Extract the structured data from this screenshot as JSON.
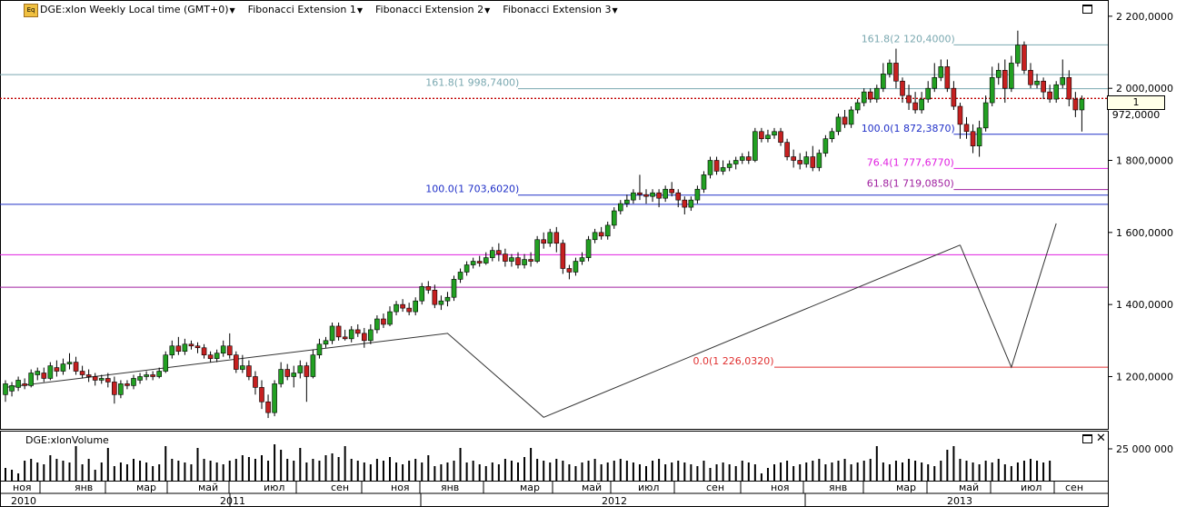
{
  "toolbar": {
    "icon_label": "Eq",
    "symbol": "DGE:xlon Weekly Local time (GMT+0)",
    "indicators": [
      "Fibonacci Extension 1",
      "Fibonacci Extension 2",
      "Fibonacci Extension 3"
    ]
  },
  "volume_panel": {
    "title": "DGE:xlonVolume",
    "axis_label": "25 000 000"
  },
  "last_price_label": "1 972,0000",
  "colors": {
    "bull": "#22a022",
    "bear": "#c62020",
    "fib1": "#7aa8b0",
    "fib2": "#2030c8",
    "fib3": "#e020e0",
    "fib618": "#a020a0",
    "fib0": "#e03030",
    "lastprice": "#c00000"
  },
  "chart_data": {
    "type": "candlestick",
    "y_axis": {
      "min": 1060,
      "max": 2240,
      "ticks": [
        "1 200,0000",
        "1 400,0000",
        "1 600,0000",
        "1 800,0000",
        "2 000,0000",
        "2 200,0000"
      ],
      "tick_values": [
        1200,
        1400,
        1600,
        1800,
        2000,
        2200
      ]
    },
    "x_axis": {
      "month_labels": [
        "ноя",
        "янв",
        "мар",
        "май",
        "июл",
        "сен",
        "ноя",
        "янв",
        "мар",
        "май",
        "июл",
        "сен",
        "ноя",
        "янв",
        "мар",
        "май",
        "июл",
        "сен"
      ],
      "year_labels": [
        "2010",
        "2011",
        "2012",
        "2013"
      ]
    },
    "last_price": 1972,
    "fib_levels": [
      {
        "label": "161.8(2 120,4000)",
        "value": 2120.4,
        "group": "fib1",
        "x_start_week": 148
      },
      {
        "label": "161.8(1 998,7400)",
        "value": 1998.74,
        "group": "fib1",
        "x_start_week": 80
      },
      {
        "label": "100.0(1 872,3870)",
        "value": 1872.387,
        "group": "fib2",
        "x_start_week": 148
      },
      {
        "label": "76.4(1 777,6770)",
        "value": 1777.677,
        "group": "fib3",
        "x_start_week": 148
      },
      {
        "label": "61.8(1 719,0850)",
        "value": 1719.085,
        "group": "fib618",
        "x_start_week": 148
      },
      {
        "label": "100.0(1 703,6020)",
        "value": 1703.602,
        "group": "fib2",
        "x_start_week": 80
      },
      {
        "label": "0.0(1 226,0320)",
        "value": 1226.032,
        "group": "fib0",
        "x_start_week": 120
      }
    ],
    "extra_lines": [
      {
        "value": 2038,
        "group": "fib1"
      },
      {
        "value": 1678,
        "group": "fib2"
      },
      {
        "value": 1538,
        "group": "fib3"
      },
      {
        "value": 1448,
        "group": "fib618"
      }
    ],
    "swing_lines": [
      {
        "points": [
          [
            0,
            1170
          ],
          [
            69,
            1320
          ],
          [
            84,
            1087
          ],
          [
            149,
            1565
          ]
        ]
      },
      {
        "points": [
          [
            149,
            1565
          ],
          [
            157,
            1226
          ],
          [
            164,
            1625
          ]
        ]
      }
    ],
    "candles": [
      [
        1150,
        1180,
        1130,
        1190
      ],
      [
        1160,
        1175,
        1145,
        1185
      ],
      [
        1170,
        1190,
        1160,
        1200
      ],
      [
        1180,
        1175,
        1165,
        1195
      ],
      [
        1175,
        1210,
        1170,
        1220
      ],
      [
        1205,
        1215,
        1190,
        1225
      ],
      [
        1210,
        1195,
        1185,
        1225
      ],
      [
        1195,
        1230,
        1190,
        1240
      ],
      [
        1225,
        1215,
        1200,
        1245
      ],
      [
        1215,
        1235,
        1205,
        1250
      ],
      [
        1235,
        1240,
        1220,
        1265
      ],
      [
        1240,
        1215,
        1205,
        1255
      ],
      [
        1215,
        1205,
        1195,
        1230
      ],
      [
        1205,
        1200,
        1185,
        1220
      ],
      [
        1200,
        1190,
        1175,
        1210
      ],
      [
        1190,
        1195,
        1180,
        1205
      ],
      [
        1195,
        1185,
        1170,
        1210
      ],
      [
        1185,
        1150,
        1125,
        1200
      ],
      [
        1150,
        1180,
        1140,
        1190
      ],
      [
        1180,
        1175,
        1165,
        1190
      ],
      [
        1175,
        1195,
        1165,
        1205
      ],
      [
        1190,
        1200,
        1180,
        1210
      ],
      [
        1200,
        1205,
        1190,
        1215
      ],
      [
        1205,
        1200,
        1190,
        1215
      ],
      [
        1200,
        1215,
        1195,
        1225
      ],
      [
        1215,
        1260,
        1210,
        1270
      ],
      [
        1260,
        1285,
        1250,
        1300
      ],
      [
        1285,
        1270,
        1260,
        1310
      ],
      [
        1270,
        1290,
        1260,
        1305
      ],
      [
        1290,
        1285,
        1275,
        1300
      ],
      [
        1285,
        1280,
        1265,
        1295
      ],
      [
        1280,
        1260,
        1250,
        1290
      ],
      [
        1260,
        1250,
        1240,
        1270
      ],
      [
        1250,
        1265,
        1240,
        1275
      ],
      [
        1265,
        1285,
        1255,
        1300
      ],
      [
        1285,
        1260,
        1250,
        1320
      ],
      [
        1260,
        1220,
        1210,
        1270
      ],
      [
        1220,
        1230,
        1210,
        1260
      ],
      [
        1230,
        1200,
        1190,
        1245
      ],
      [
        1200,
        1170,
        1150,
        1215
      ],
      [
        1170,
        1130,
        1110,
        1190
      ],
      [
        1130,
        1100,
        1085,
        1150
      ],
      [
        1100,
        1180,
        1090,
        1190
      ],
      [
        1180,
        1220,
        1170,
        1240
      ],
      [
        1220,
        1200,
        1190,
        1235
      ],
      [
        1200,
        1210,
        1170,
        1230
      ],
      [
        1210,
        1230,
        1195,
        1245
      ],
      [
        1230,
        1200,
        1130,
        1240
      ],
      [
        1200,
        1260,
        1195,
        1275
      ],
      [
        1260,
        1290,
        1250,
        1305
      ],
      [
        1290,
        1300,
        1280,
        1310
      ],
      [
        1300,
        1340,
        1290,
        1350
      ],
      [
        1340,
        1310,
        1300,
        1350
      ],
      [
        1310,
        1305,
        1300,
        1330
      ],
      [
        1305,
        1330,
        1295,
        1340
      ],
      [
        1330,
        1320,
        1310,
        1345
      ],
      [
        1320,
        1300,
        1280,
        1335
      ],
      [
        1300,
        1330,
        1290,
        1345
      ],
      [
        1330,
        1360,
        1320,
        1370
      ],
      [
        1360,
        1345,
        1335,
        1375
      ],
      [
        1345,
        1380,
        1340,
        1395
      ],
      [
        1380,
        1400,
        1370,
        1410
      ],
      [
        1400,
        1390,
        1380,
        1415
      ],
      [
        1390,
        1380,
        1370,
        1405
      ],
      [
        1380,
        1410,
        1370,
        1420
      ],
      [
        1410,
        1450,
        1400,
        1460
      ],
      [
        1450,
        1440,
        1430,
        1465
      ],
      [
        1440,
        1400,
        1390,
        1455
      ],
      [
        1400,
        1410,
        1385,
        1425
      ],
      [
        1410,
        1420,
        1395,
        1435
      ],
      [
        1420,
        1470,
        1410,
        1480
      ],
      [
        1470,
        1490,
        1460,
        1500
      ],
      [
        1490,
        1510,
        1480,
        1520
      ],
      [
        1510,
        1520,
        1500,
        1530
      ],
      [
        1520,
        1515,
        1505,
        1535
      ],
      [
        1515,
        1530,
        1510,
        1545
      ],
      [
        1530,
        1550,
        1520,
        1560
      ],
      [
        1550,
        1540,
        1520,
        1570
      ],
      [
        1540,
        1520,
        1505,
        1555
      ],
      [
        1520,
        1530,
        1505,
        1540
      ],
      [
        1530,
        1510,
        1500,
        1545
      ],
      [
        1510,
        1525,
        1500,
        1540
      ],
      [
        1525,
        1520,
        1505,
        1545
      ],
      [
        1520,
        1580,
        1515,
        1590
      ],
      [
        1580,
        1570,
        1555,
        1600
      ],
      [
        1570,
        1600,
        1560,
        1610
      ],
      [
        1600,
        1570,
        1545,
        1615
      ],
      [
        1570,
        1500,
        1485,
        1580
      ],
      [
        1500,
        1490,
        1470,
        1510
      ],
      [
        1490,
        1520,
        1480,
        1530
      ],
      [
        1520,
        1530,
        1510,
        1545
      ],
      [
        1530,
        1580,
        1520,
        1590
      ],
      [
        1580,
        1600,
        1570,
        1610
      ],
      [
        1600,
        1590,
        1580,
        1615
      ],
      [
        1590,
        1620,
        1580,
        1630
      ],
      [
        1620,
        1660,
        1610,
        1670
      ],
      [
        1660,
        1680,
        1650,
        1690
      ],
      [
        1680,
        1690,
        1670,
        1705
      ],
      [
        1690,
        1710,
        1680,
        1720
      ],
      [
        1710,
        1705,
        1690,
        1760
      ],
      [
        1705,
        1700,
        1680,
        1720
      ],
      [
        1700,
        1710,
        1685,
        1720
      ],
      [
        1710,
        1695,
        1670,
        1720
      ],
      [
        1695,
        1720,
        1685,
        1730
      ],
      [
        1720,
        1710,
        1700,
        1740
      ],
      [
        1710,
        1690,
        1670,
        1720
      ],
      [
        1690,
        1670,
        1650,
        1700
      ],
      [
        1670,
        1690,
        1660,
        1700
      ],
      [
        1690,
        1720,
        1680,
        1730
      ],
      [
        1720,
        1760,
        1710,
        1770
      ],
      [
        1760,
        1800,
        1750,
        1810
      ],
      [
        1800,
        1770,
        1760,
        1810
      ],
      [
        1770,
        1780,
        1760,
        1800
      ],
      [
        1780,
        1790,
        1770,
        1800
      ],
      [
        1790,
        1800,
        1775,
        1810
      ],
      [
        1800,
        1810,
        1790,
        1820
      ],
      [
        1810,
        1800,
        1790,
        1825
      ],
      [
        1800,
        1880,
        1795,
        1890
      ],
      [
        1880,
        1860,
        1850,
        1890
      ],
      [
        1860,
        1870,
        1850,
        1885
      ],
      [
        1870,
        1880,
        1860,
        1890
      ],
      [
        1880,
        1850,
        1840,
        1890
      ],
      [
        1850,
        1810,
        1800,
        1860
      ],
      [
        1810,
        1800,
        1780,
        1830
      ],
      [
        1800,
        1790,
        1775,
        1820
      ],
      [
        1790,
        1810,
        1780,
        1825
      ],
      [
        1810,
        1780,
        1770,
        1840
      ],
      [
        1780,
        1820,
        1770,
        1830
      ],
      [
        1820,
        1860,
        1810,
        1870
      ],
      [
        1860,
        1880,
        1850,
        1890
      ],
      [
        1880,
        1920,
        1870,
        1930
      ],
      [
        1920,
        1900,
        1890,
        1940
      ],
      [
        1900,
        1940,
        1890,
        1950
      ],
      [
        1940,
        1960,
        1930,
        1970
      ],
      [
        1960,
        1990,
        1950,
        2000
      ],
      [
        1990,
        1970,
        1960,
        2000
      ],
      [
        1970,
        2000,
        1960,
        2010
      ],
      [
        2000,
        2040,
        1990,
        2070
      ],
      [
        2040,
        2070,
        2030,
        2080
      ],
      [
        2070,
        2020,
        2000,
        2110
      ],
      [
        2020,
        1980,
        1960,
        2030
      ],
      [
        1980,
        1960,
        1940,
        2010
      ],
      [
        1960,
        1940,
        1930,
        1990
      ],
      [
        1940,
        1970,
        1930,
        1990
      ],
      [
        1970,
        2000,
        1960,
        2020
      ],
      [
        2000,
        2030,
        1990,
        2070
      ],
      [
        2030,
        2060,
        2020,
        2080
      ],
      [
        2060,
        2000,
        1990,
        2080
      ],
      [
        2000,
        1950,
        1940,
        2020
      ],
      [
        1950,
        1900,
        1860,
        1960
      ],
      [
        1900,
        1880,
        1860,
        1920
      ],
      [
        1880,
        1840,
        1820,
        1900
      ],
      [
        1840,
        1890,
        1810,
        1910
      ],
      [
        1890,
        1960,
        1880,
        1980
      ],
      [
        1960,
        2030,
        1950,
        2060
      ],
      [
        2030,
        2050,
        2010,
        2070
      ],
      [
        2050,
        2000,
        1960,
        2080
      ],
      [
        2000,
        2070,
        1990,
        2090
      ],
      [
        2070,
        2120,
        2060,
        2160
      ],
      [
        2120,
        2050,
        2040,
        2130
      ],
      [
        2050,
        2010,
        2000,
        2070
      ],
      [
        2010,
        2020,
        2000,
        2040
      ],
      [
        2020,
        1990,
        1970,
        2030
      ],
      [
        1990,
        1970,
        1960,
        2010
      ],
      [
        1970,
        2010,
        1960,
        2020
      ],
      [
        2010,
        2030,
        2000,
        2080
      ],
      [
        2030,
        1970,
        1950,
        2050
      ],
      [
        1970,
        1940,
        1920,
        1990
      ],
      [
        1940,
        1970,
        1880,
        1980
      ]
    ],
    "volumes": [
      0.35,
      0.3,
      0.2,
      0.55,
      0.6,
      0.5,
      0.45,
      0.7,
      0.6,
      0.55,
      0.5,
      0.95,
      0.45,
      0.6,
      0.3,
      0.5,
      0.9,
      0.4,
      0.5,
      0.45,
      0.6,
      0.55,
      0.5,
      0.4,
      0.45,
      0.95,
      0.6,
      0.55,
      0.5,
      0.45,
      0.9,
      0.6,
      0.55,
      0.5,
      0.45,
      0.55,
      0.6,
      0.7,
      0.65,
      0.6,
      0.7,
      0.55,
      1.0,
      0.85,
      0.6,
      0.55,
      0.9,
      0.5,
      0.6,
      0.55,
      0.7,
      0.75,
      0.65,
      0.95,
      0.6,
      0.55,
      0.5,
      0.45,
      0.6,
      0.55,
      0.65,
      0.5,
      0.45,
      0.55,
      0.6,
      0.5,
      0.7,
      0.4,
      0.45,
      0.5,
      0.55,
      0.9,
      0.5,
      0.55,
      0.45,
      0.4,
      0.5,
      0.45,
      0.6,
      0.55,
      0.5,
      0.65,
      0.9,
      0.6,
      0.55,
      0.5,
      0.6,
      0.55,
      0.45,
      0.4,
      0.5,
      0.55,
      0.6,
      0.45,
      0.5,
      0.55,
      0.6,
      0.55,
      0.5,
      0.45,
      0.4,
      0.55,
      0.6,
      0.45,
      0.5,
      0.55,
      0.5,
      0.45,
      0.4,
      0.55,
      0.35,
      0.45,
      0.5,
      0.45,
      0.4,
      0.55,
      0.5,
      0.45,
      0.2,
      0.35,
      0.45,
      0.5,
      0.55,
      0.4,
      0.45,
      0.5,
      0.55,
      0.6,
      0.45,
      0.5,
      0.55,
      0.6,
      0.45,
      0.5,
      0.55,
      0.6,
      0.95,
      0.5,
      0.45,
      0.55,
      0.5,
      0.6,
      0.55,
      0.5,
      0.45,
      0.4,
      0.55,
      0.85,
      0.95,
      0.6,
      0.55,
      0.5,
      0.45,
      0.55,
      0.5,
      0.6,
      0.45,
      0.4,
      0.5,
      0.55,
      0.6,
      0.55,
      0.5,
      0.55
    ]
  }
}
